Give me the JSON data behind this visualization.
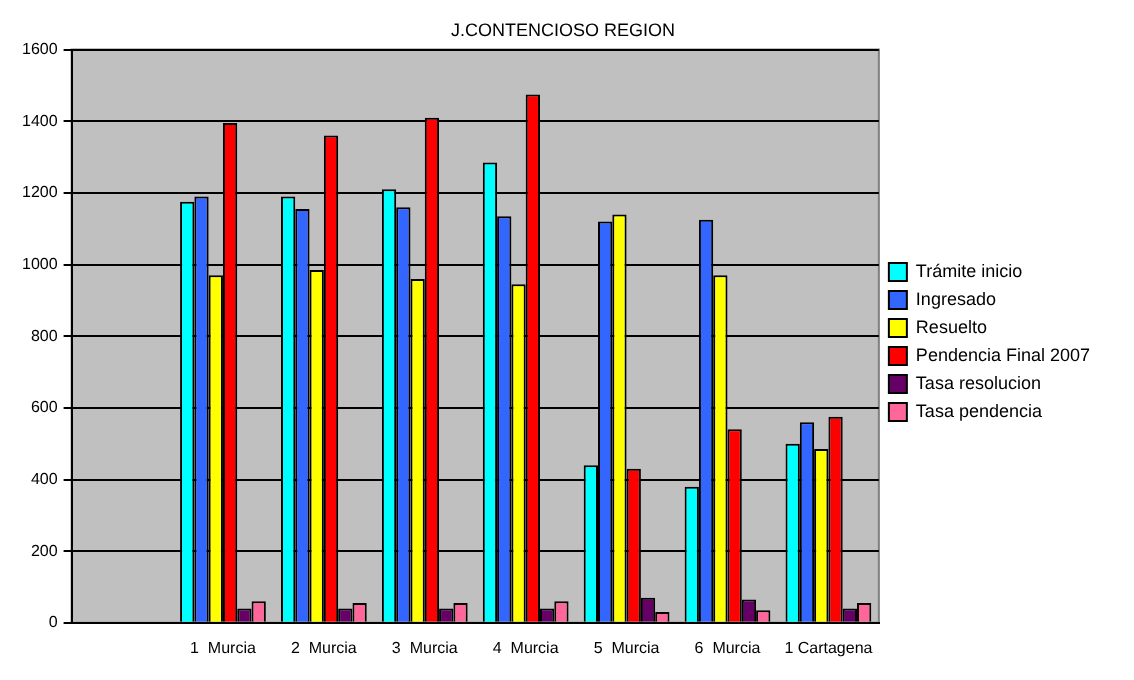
{
  "chart_data": {
    "type": "bar",
    "title": "J.CONTENCIOSO REGION",
    "categories": [
      null,
      "1  Murcia",
      "2  Murcia",
      "3  Murcia",
      "4  Murcia",
      "5  Murcia",
      "6  Murcia",
      "1 Cartagena"
    ],
    "series": [
      {
        "name": "Trámite inicio",
        "color": "#00ffff",
        "values": [
          null,
          1175,
          1190,
          1210,
          1285,
          440,
          380,
          500
        ]
      },
      {
        "name": "Ingresado",
        "color": "#3366ff",
        "values": [
          null,
          1190,
          1155,
          1160,
          1135,
          1120,
          1125,
          560
        ]
      },
      {
        "name": "Resuelto",
        "color": "#ffff00",
        "values": [
          null,
          970,
          985,
          960,
          945,
          1140,
          970,
          485
        ]
      },
      {
        "name": "Pendencia Final 2007",
        "color": "#ff0000",
        "values": [
          null,
          1395,
          1360,
          1410,
          1475,
          430,
          540,
          575
        ]
      },
      {
        "name": "Tasa resolucion",
        "color": "#660066",
        "values": [
          null,
          40,
          40,
          40,
          40,
          70,
          65,
          40
        ]
      },
      {
        "name": "Tasa pendencia",
        "color": "#ff6699",
        "values": [
          null,
          60,
          55,
          55,
          60,
          30,
          35,
          55
        ]
      }
    ],
    "ylim": [
      0,
      1600
    ],
    "yticks": [
      0,
      200,
      400,
      600,
      800,
      1000,
      1200,
      1400,
      1600
    ],
    "grid": "y",
    "legend": "right"
  }
}
